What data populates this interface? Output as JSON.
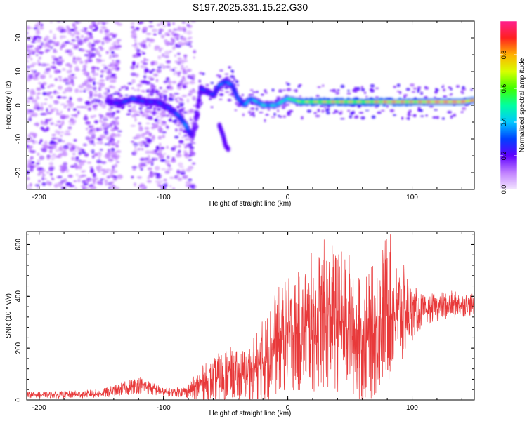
{
  "title": "S197.2025.331.15.22.G30",
  "chart_data": [
    {
      "type": "heatmap",
      "name": "spectrogram",
      "xlabel": "Height of straight line (km)",
      "ylabel": "Frequency (Hz)",
      "xlim": [
        -210,
        150
      ],
      "ylim": [
        -25,
        25
      ],
      "xticks": [
        -200,
        -100,
        0,
        100
      ],
      "yticks": [
        -20,
        -10,
        0,
        10,
        20
      ],
      "colorbar": {
        "label": "Normalized spectral amplitude",
        "range": [
          0,
          1
        ],
        "ticks": [
          "0.0",
          "0.2",
          "0.4",
          "0.6",
          "0.8"
        ],
        "tick_values": [
          0,
          0.2,
          0.4,
          0.6,
          0.8
        ]
      },
      "ridge": {
        "description": "frequency of dominant spectral ridge vs height",
        "x": [
          -145,
          -135,
          -125,
          -115,
          -105,
          -95,
          -88,
          -82,
          -78,
          -75,
          -70,
          -60,
          -55,
          -50,
          -45,
          -40,
          -35,
          -30,
          -25,
          -20,
          -15,
          -10,
          -5,
          0,
          10,
          20,
          30,
          40,
          50,
          60,
          70,
          80,
          90,
          100,
          110,
          120,
          130,
          140,
          150
        ],
        "y": [
          1,
          0.5,
          2,
          1,
          1,
          -1,
          -3,
          -6,
          -9,
          -7,
          5,
          3,
          6,
          7,
          6,
          2,
          0,
          2,
          1,
          0,
          0,
          0,
          1,
          2,
          1,
          1,
          1,
          1,
          1,
          1,
          1,
          1,
          1,
          1,
          1,
          1,
          1,
          1,
          1.5
        ],
        "peak_amplitude": [
          0.25,
          0.3,
          0.35,
          0.3,
          0.3,
          0.3,
          0.35,
          0.4,
          0.3,
          0.2,
          0.3,
          0.3,
          0.35,
          0.4,
          0.35,
          0.35,
          0.4,
          0.45,
          0.45,
          0.5,
          0.45,
          0.5,
          0.5,
          0.55,
          0.7,
          0.75,
          0.8,
          0.85,
          0.8,
          0.75,
          0.85,
          0.9,
          0.9,
          0.85,
          0.9,
          0.95,
          0.95,
          0.95,
          0.9
        ]
      },
      "secondary_branch": {
        "x": [
          -55,
          -52,
          -50,
          -48
        ],
        "y": [
          -6,
          -9,
          -12,
          -13
        ],
        "peak_amplitude": [
          0.25,
          0.25,
          0.2,
          0.2
        ]
      },
      "noise_regions": [
        {
          "x_from": -210,
          "x_to": -135,
          "density": "high"
        },
        {
          "x_from": -125,
          "x_to": -75,
          "density": "medium"
        }
      ]
    },
    {
      "type": "line",
      "name": "snr",
      "xlabel": "Height of straight line (km)",
      "ylabel": "SNR (10 * v/v)",
      "xlim": [
        -210,
        150
      ],
      "ylim": [
        0,
        650
      ],
      "xticks": [
        -200,
        -100,
        0,
        100
      ],
      "yticks": [
        0,
        200,
        400,
        600
      ],
      "color": "#e8393a",
      "series": [
        {
          "name": "SNR",
          "x": [
            -210,
            -180,
            -150,
            -130,
            -120,
            -110,
            -100,
            -90,
            -80,
            -70,
            -60,
            -50,
            -40,
            -30,
            -20,
            -10,
            0,
            10,
            20,
            30,
            40,
            50,
            60,
            70,
            80,
            90,
            100,
            110,
            120,
            130,
            140,
            150
          ],
          "center": [
            20,
            20,
            25,
            45,
            60,
            45,
            30,
            30,
            35,
            60,
            75,
            100,
            90,
            110,
            150,
            220,
            250,
            260,
            300,
            330,
            310,
            290,
            220,
            270,
            360,
            330,
            340,
            345,
            360,
            365,
            370,
            365
          ],
          "spread": [
            8,
            10,
            12,
            20,
            25,
            20,
            12,
            12,
            20,
            50,
            60,
            80,
            70,
            90,
            120,
            150,
            160,
            170,
            200,
            210,
            200,
            200,
            170,
            190,
            220,
            160,
            80,
            40,
            40,
            40,
            35,
            30
          ]
        }
      ]
    }
  ]
}
